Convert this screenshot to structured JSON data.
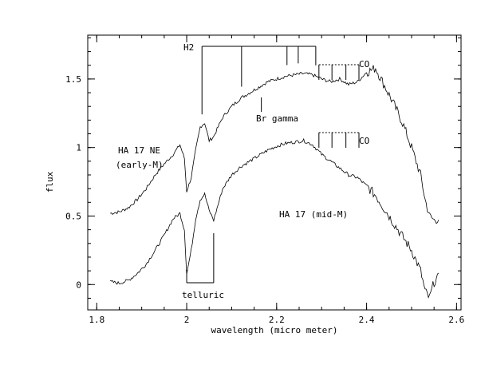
{
  "chart_data": {
    "type": "line",
    "title": "",
    "xlabel": "wavelength (micro meter)",
    "ylabel": "flux",
    "xlim": [
      1.78,
      2.61
    ],
    "ylim": [
      -0.185,
      1.82
    ],
    "x_ticks": [
      1.8,
      2.0,
      2.2,
      2.4,
      2.6
    ],
    "x_tick_labels": [
      "1.8",
      "2",
      "2.2",
      "2.4",
      "2.6"
    ],
    "y_ticks": [
      0,
      0.5,
      1.0,
      1.5
    ],
    "y_tick_labels": [
      "0",
      "0.5",
      "1",
      "1.5"
    ],
    "grid": false,
    "legend": "none",
    "series": [
      {
        "name": "HA 17 NE",
        "x": [
          1.83,
          1.85,
          1.87,
          1.89,
          1.91,
          1.93,
          1.95,
          1.97,
          1.985,
          1.995,
          2.0,
          2.01,
          2.02,
          2.03,
          2.04,
          2.05,
          2.06,
          2.08,
          2.1,
          2.12,
          2.14,
          2.16,
          2.18,
          2.2,
          2.22,
          2.24,
          2.26,
          2.28,
          2.3,
          2.32,
          2.34,
          2.36,
          2.38,
          2.4,
          2.42,
          2.44,
          2.46,
          2.48,
          2.5,
          2.52,
          2.53,
          2.54,
          2.55,
          2.56
        ],
        "y": [
          0.52,
          0.53,
          0.56,
          0.62,
          0.7,
          0.8,
          0.88,
          0.95,
          1.02,
          0.92,
          0.68,
          0.78,
          0.98,
          1.15,
          1.18,
          1.05,
          1.08,
          1.22,
          1.3,
          1.36,
          1.4,
          1.44,
          1.48,
          1.5,
          1.52,
          1.53,
          1.54,
          1.53,
          1.5,
          1.48,
          1.5,
          1.46,
          1.48,
          1.55,
          1.58,
          1.45,
          1.32,
          1.18,
          1.0,
          0.8,
          0.62,
          0.5,
          0.47,
          0.48
        ]
      },
      {
        "name": "HA 17",
        "x": [
          1.83,
          1.85,
          1.87,
          1.89,
          1.91,
          1.93,
          1.95,
          1.97,
          1.985,
          1.995,
          2.0,
          2.01,
          2.02,
          2.03,
          2.04,
          2.05,
          2.06,
          2.08,
          2.1,
          2.12,
          2.14,
          2.16,
          2.18,
          2.2,
          2.22,
          2.24,
          2.26,
          2.28,
          2.3,
          2.32,
          2.34,
          2.36,
          2.38,
          2.4,
          2.42,
          2.44,
          2.46,
          2.48,
          2.5,
          2.52,
          2.53,
          2.54,
          2.55,
          2.56
        ],
        "y": [
          0.02,
          0.01,
          0.03,
          0.08,
          0.15,
          0.25,
          0.36,
          0.48,
          0.52,
          0.4,
          0.08,
          0.25,
          0.48,
          0.62,
          0.66,
          0.54,
          0.47,
          0.7,
          0.8,
          0.86,
          0.9,
          0.94,
          0.98,
          1.01,
          1.03,
          1.04,
          1.05,
          1.02,
          0.95,
          0.9,
          0.85,
          0.8,
          0.78,
          0.72,
          0.65,
          0.55,
          0.45,
          0.35,
          0.25,
          0.1,
          -0.05,
          -0.1,
          0.02,
          0.05
        ]
      }
    ],
    "annotations": {
      "h2_label": "H2",
      "h2_lines_x": [
        2.034,
        2.122,
        2.223,
        2.248,
        2.287
      ],
      "br_gamma_label": "Br gamma",
      "br_gamma_x": 2.166,
      "co_label": "CO",
      "co_lines_x": [
        2.294,
        2.323,
        2.354,
        2.383
      ],
      "co_top_y": 1.66,
      "co_bottom_y": 1.64,
      "telluric_label": "telluric",
      "telluric_x": [
        2.0,
        2.06
      ],
      "ne_label": "HA 17 NE",
      "ne_sub_label": "(early-M)",
      "mid_label": "HA 17 (mid-M)"
    }
  }
}
